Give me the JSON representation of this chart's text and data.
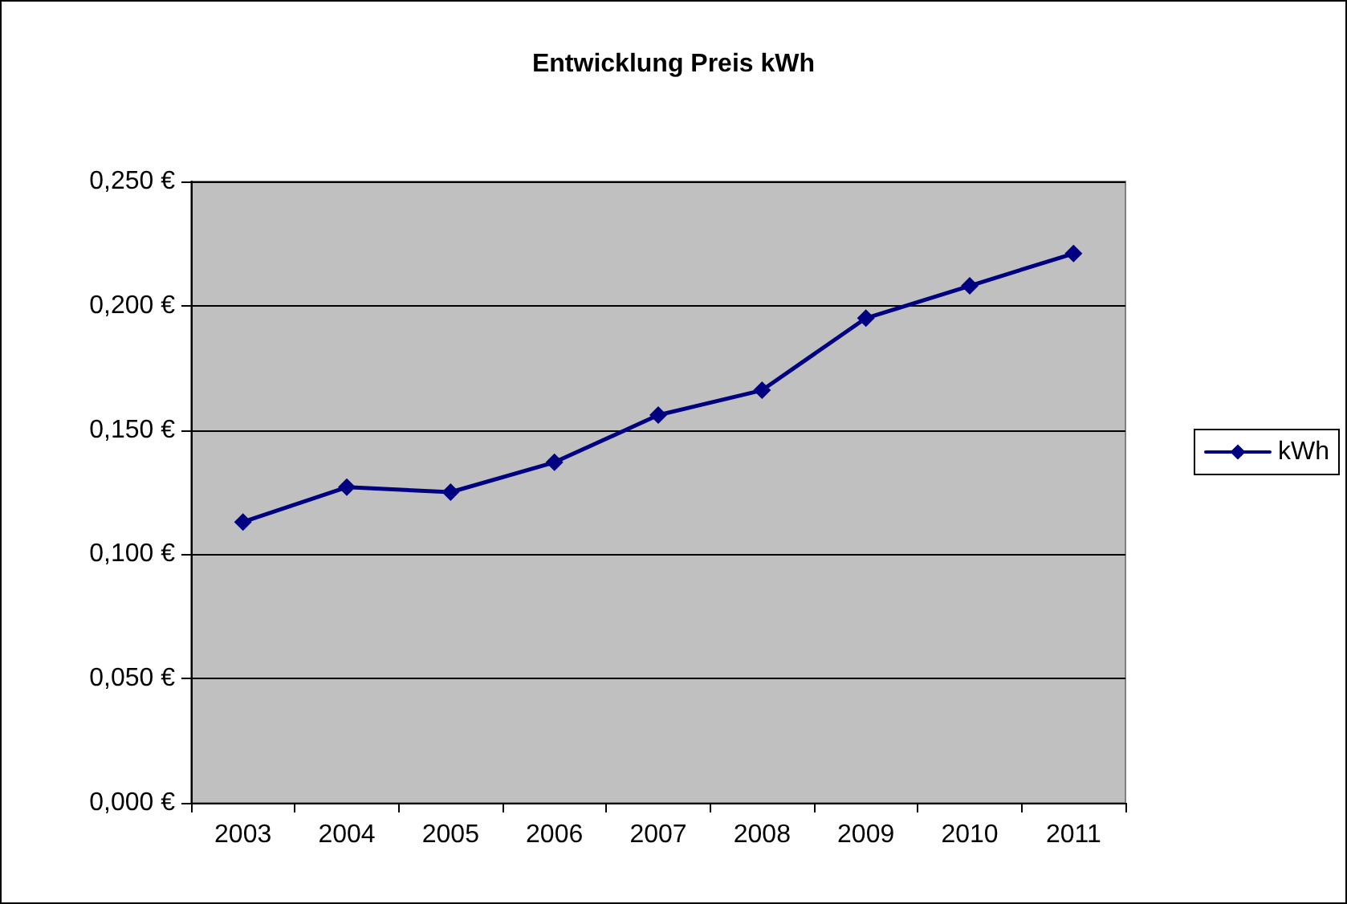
{
  "chart_data": {
    "type": "line",
    "title": "Entwicklung Preis kWh",
    "categories": [
      "2003",
      "2004",
      "2005",
      "2006",
      "2007",
      "2008",
      "2009",
      "2010",
      "2011"
    ],
    "series": [
      {
        "name": "kWh",
        "color": "#000080",
        "values": [
          0.113,
          0.127,
          0.125,
          0.137,
          0.156,
          0.166,
          0.195,
          0.208,
          0.221
        ]
      }
    ],
    "ylim": [
      0,
      0.25
    ],
    "yticks": [
      {
        "value": 0,
        "label": "0,000 €"
      },
      {
        "value": 0.05,
        "label": "0,050 €"
      },
      {
        "value": 0.1,
        "label": "0,100 €"
      },
      {
        "value": 0.15,
        "label": "0,150 €"
      },
      {
        "value": 0.2,
        "label": "0,200 €"
      },
      {
        "value": 0.25,
        "label": "0,250 €"
      }
    ],
    "grid": "y",
    "legend": "right",
    "marker": "diamond",
    "line_style": "solid"
  }
}
